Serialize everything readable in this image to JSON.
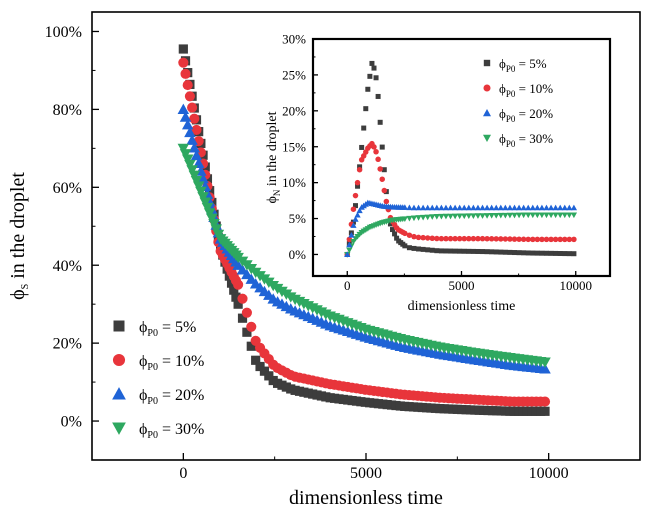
{
  "chart_data": [
    {
      "type": "scatter",
      "title": "",
      "xlabel": "dimensionless time",
      "ylabel": {
        "base": "ϕ",
        "sub": "S",
        "rest": " in the droplet"
      },
      "xlim": [
        -2500,
        12500
      ],
      "ylim": [
        -0.1,
        1.05
      ],
      "x_ticks": [
        0,
        5000,
        10000
      ],
      "x_tick_labels": [
        "0",
        "5000",
        "10000"
      ],
      "y_ticks": [
        0,
        0.2,
        0.4,
        0.6,
        0.8,
        1.0
      ],
      "y_tick_labels": [
        "0%",
        "20%",
        "40%",
        "60%",
        "80%",
        "100%"
      ],
      "grid": false,
      "legend_position": "bottom-left",
      "series": [
        {
          "name": {
            "base": "ϕ",
            "sub": "P0",
            "rest": " = 5%"
          },
          "marker": "square",
          "color": "#3d3d3d",
          "points": [
            [
              0,
              0.955
            ],
            [
              1000,
              0.45
            ],
            [
              1500,
              0.3
            ],
            [
              2000,
              0.15
            ],
            [
              2500,
              0.1
            ],
            [
              3000,
              0.08
            ],
            [
              4000,
              0.06
            ],
            [
              5000,
              0.048
            ],
            [
              6000,
              0.038
            ],
            [
              7000,
              0.032
            ],
            [
              8000,
              0.028
            ],
            [
              9000,
              0.025
            ],
            [
              10000,
              0.025
            ]
          ]
        },
        {
          "name": {
            "base": "ϕ",
            "sub": "P0",
            "rest": " = 10%"
          },
          "marker": "circle",
          "color": "#e8353b",
          "points": [
            [
              0,
              0.92
            ],
            [
              1000,
              0.44
            ],
            [
              1500,
              0.35
            ],
            [
              2000,
              0.2
            ],
            [
              2500,
              0.14
            ],
            [
              3000,
              0.115
            ],
            [
              4000,
              0.095
            ],
            [
              5000,
              0.08
            ],
            [
              6000,
              0.068
            ],
            [
              7000,
              0.06
            ],
            [
              8000,
              0.055
            ],
            [
              9000,
              0.05
            ],
            [
              10000,
              0.05
            ]
          ]
        },
        {
          "name": {
            "base": "ϕ",
            "sub": "P0",
            "rest": " = 20%"
          },
          "marker": "triangle",
          "color": "#1f63d6",
          "points": [
            [
              0,
              0.8
            ],
            [
              1000,
              0.47
            ],
            [
              1500,
              0.4
            ],
            [
              2000,
              0.35
            ],
            [
              2500,
              0.31
            ],
            [
              3000,
              0.285
            ],
            [
              4000,
              0.245
            ],
            [
              5000,
              0.215
            ],
            [
              6000,
              0.19
            ],
            [
              7000,
              0.172
            ],
            [
              8000,
              0.157
            ],
            [
              9000,
              0.143
            ],
            [
              10000,
              0.133
            ]
          ]
        },
        {
          "name": {
            "base": "ϕ",
            "sub": "P0",
            "rest": " = 30%"
          },
          "marker": "triangle-down",
          "color": "#2ea860",
          "points": [
            [
              0,
              0.7
            ],
            [
              1000,
              0.47
            ],
            [
              1500,
              0.42
            ],
            [
              2000,
              0.38
            ],
            [
              2500,
              0.345
            ],
            [
              3000,
              0.315
            ],
            [
              4000,
              0.27
            ],
            [
              5000,
              0.235
            ],
            [
              6000,
              0.21
            ],
            [
              7000,
              0.19
            ],
            [
              8000,
              0.175
            ],
            [
              9000,
              0.162
            ],
            [
              10000,
              0.15
            ]
          ]
        }
      ]
    },
    {
      "type": "scatter",
      "title": "",
      "xlabel": "dimensionless time",
      "ylabel": {
        "base": "ϕ",
        "sub": "N",
        "rest": " in the droplet"
      },
      "xlim": [
        -1500,
        11500
      ],
      "ylim": [
        -0.03,
        0.3
      ],
      "x_ticks": [
        0,
        5000,
        10000
      ],
      "x_tick_labels": [
        "0",
        "5000",
        "10000"
      ],
      "y_ticks": [
        0,
        0.05,
        0.1,
        0.15,
        0.2,
        0.25,
        0.3
      ],
      "y_tick_labels": [
        "0%",
        "5%",
        "10%",
        "15%",
        "20%",
        "25%",
        "30%"
      ],
      "grid": false,
      "legend_position": "top-right",
      "series": [
        {
          "name": {
            "base": "ϕ",
            "sub": "P0",
            "rest": " = 5%"
          },
          "marker": "square",
          "color": "#3d3d3d",
          "points": [
            [
              0,
              0
            ],
            [
              300,
              0.05
            ],
            [
              600,
              0.14
            ],
            [
              900,
              0.23
            ],
            [
              1100,
              0.27
            ],
            [
              1300,
              0.24
            ],
            [
              1500,
              0.16
            ],
            [
              1700,
              0.09
            ],
            [
              1900,
              0.04
            ],
            [
              2200,
              0.02
            ],
            [
              2600,
              0.01
            ],
            [
              3000,
              0.008
            ],
            [
              4000,
              0.005
            ],
            [
              6000,
              0.004
            ],
            [
              8000,
              0.002
            ],
            [
              10000,
              0.001
            ]
          ]
        },
        {
          "name": {
            "base": "ϕ",
            "sub": "P0",
            "rest": " = 10%"
          },
          "marker": "circle",
          "color": "#e8353b",
          "points": [
            [
              0,
              0
            ],
            [
              300,
              0.07
            ],
            [
              600,
              0.13
            ],
            [
              900,
              0.148
            ],
            [
              1100,
              0.155
            ],
            [
              1300,
              0.14
            ],
            [
              1500,
              0.11
            ],
            [
              1700,
              0.075
            ],
            [
              1900,
              0.05
            ],
            [
              2200,
              0.035
            ],
            [
              2600,
              0.028
            ],
            [
              3000,
              0.024
            ],
            [
              4000,
              0.022
            ],
            [
              6000,
              0.022
            ],
            [
              8000,
              0.021
            ],
            [
              10000,
              0.021
            ]
          ]
        },
        {
          "name": {
            "base": "ϕ",
            "sub": "P0",
            "rest": " = 20%"
          },
          "marker": "triangle",
          "color": "#1f63d6",
          "points": [
            [
              0,
              0
            ],
            [
              300,
              0.045
            ],
            [
              600,
              0.065
            ],
            [
              900,
              0.072
            ],
            [
              1200,
              0.07
            ],
            [
              1600,
              0.067
            ],
            [
              2000,
              0.066
            ],
            [
              3000,
              0.065
            ],
            [
              4000,
              0.065
            ],
            [
              6000,
              0.065
            ],
            [
              8000,
              0.065
            ],
            [
              10000,
              0.065
            ]
          ]
        },
        {
          "name": {
            "base": "ϕ",
            "sub": "P0",
            "rest": " = 30%"
          },
          "marker": "triangle-down",
          "color": "#2ea860",
          "points": [
            [
              0,
              0
            ],
            [
              300,
              0.02
            ],
            [
              600,
              0.03
            ],
            [
              1000,
              0.038
            ],
            [
              1500,
              0.044
            ],
            [
              2000,
              0.048
            ],
            [
              3000,
              0.051
            ],
            [
              4000,
              0.053
            ],
            [
              6000,
              0.054
            ],
            [
              8000,
              0.055
            ],
            [
              10000,
              0.055
            ]
          ]
        }
      ]
    }
  ]
}
